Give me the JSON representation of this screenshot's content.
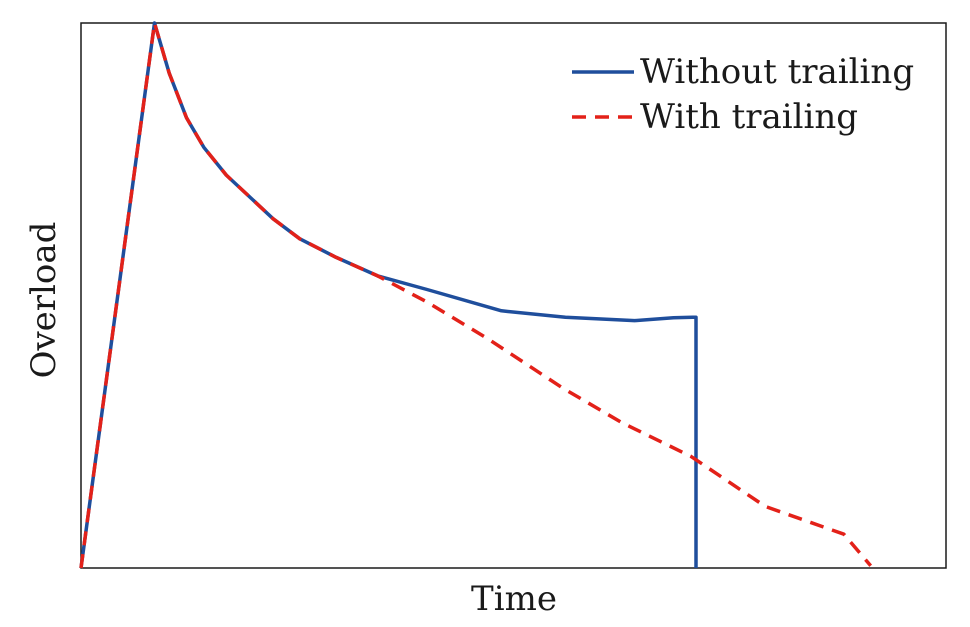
{
  "chart_data": {
    "type": "line",
    "title": "",
    "xlabel": "Time",
    "ylabel": "Overload",
    "xlim": [
      0,
      100
    ],
    "ylim": [
      0,
      100
    ],
    "grid": false,
    "x_ticks": false,
    "y_ticks": false,
    "legend_position": "top-right",
    "series": [
      {
        "name": "Without trailing",
        "color": "#1f4e9c",
        "dash": "solid",
        "x": [
          0,
          8.5,
          10.2,
          12.2,
          14.2,
          16.8,
          19.7,
          22.2,
          25.3,
          29.5,
          34.3,
          40.0,
          48.6,
          56.0,
          64.0,
          68.5,
          70.7,
          71.1,
          71.1
        ],
        "y": [
          0,
          100,
          90.8,
          82.6,
          77.2,
          72.1,
          67.8,
          64.1,
          60.4,
          57.0,
          53.6,
          51.1,
          47.2,
          46.0,
          45.4,
          45.9,
          46.0,
          46.0,
          0
        ]
      },
      {
        "name": "With trailing",
        "color": "#e32119",
        "dash": "dashed",
        "x": [
          0,
          8.5,
          10.2,
          12.2,
          14.2,
          16.8,
          19.7,
          22.2,
          25.3,
          29.5,
          34.3,
          40.0,
          47.1,
          55.7,
          62.5,
          70.5,
          79.1,
          88.2,
          91.3
        ],
        "y": [
          0,
          100,
          90.8,
          82.6,
          77.2,
          72.1,
          67.8,
          64.1,
          60.4,
          57.0,
          53.6,
          48.8,
          42.0,
          33.0,
          26.7,
          20.5,
          11.3,
          6.2,
          0.4
        ]
      }
    ]
  }
}
